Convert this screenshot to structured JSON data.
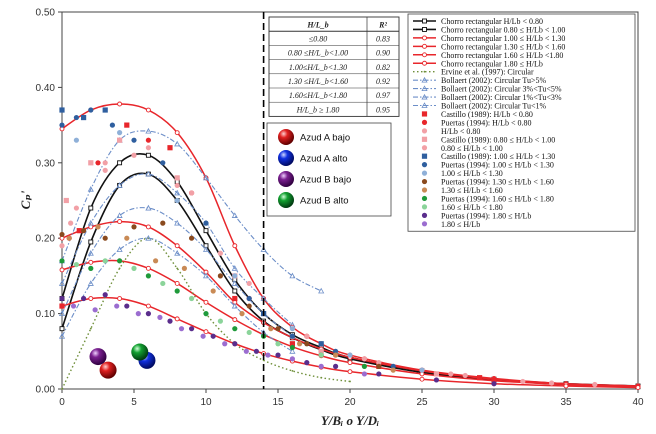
{
  "chart_data": {
    "type": "scatter",
    "xlabel": "Y/Bᵢ  o Y/Dᵢ",
    "ylabel": "Cₚ'",
    "xlim": [
      0,
      40
    ],
    "ylim": [
      0,
      0.5
    ],
    "xticks": [
      "0",
      "5",
      "10",
      "15",
      "20",
      "25",
      "30",
      "35",
      "40"
    ],
    "yticks": [
      "0.00",
      "0.10",
      "0.20",
      "0.30",
      "0.40",
      "0.50"
    ],
    "vline_x": 14,
    "table": {
      "headers": [
        "H/L_b",
        "R²"
      ],
      "rows": [
        [
          "≤0.80",
          "0.83"
        ],
        [
          "0.80 ≤H/L_b<1.00",
          "0.90"
        ],
        [
          "1.00≤H/L_b<1.30",
          "0.82"
        ],
        [
          "1.30 ≤H/L_b<1.60",
          "0.92"
        ],
        [
          "1.60≤H/L_b<1.80",
          "0.97"
        ],
        [
          "H/L_b ≥ 1.80",
          "0.95"
        ]
      ]
    },
    "azud_legend": [
      {
        "label": "Azud A bajo",
        "color": "#cc1111"
      },
      {
        "label": "Azud A alto",
        "color": "#1122cc"
      },
      {
        "label": "Azud B bajo",
        "color": "#6a1a7a"
      },
      {
        "label": "Azud B alto",
        "color": "#118a22"
      }
    ],
    "azud_markers": [
      {
        "x": 3.2,
        "y": 0.025,
        "color": "#cc1111"
      },
      {
        "x": 5.9,
        "y": 0.038,
        "color": "#1122cc"
      },
      {
        "x": 2.5,
        "y": 0.043,
        "color": "#6a1a7a"
      },
      {
        "x": 5.4,
        "y": 0.049,
        "color": "#118a22"
      }
    ],
    "series": [
      {
        "name": "Chorro rectangular H/Lb < 0.80",
        "style": "black-line",
        "color": "#000000",
        "x": [
          0,
          2,
          4,
          6,
          8,
          10,
          12,
          14,
          16,
          18,
          20,
          25,
          30,
          35,
          40
        ],
        "y": [
          0.08,
          0.195,
          0.27,
          0.285,
          0.25,
          0.19,
          0.13,
          0.09,
          0.068,
          0.052,
          0.04,
          0.022,
          0.012,
          0.006,
          0.003
        ]
      },
      {
        "name": "Chorro rectangular 0.80 ≤ H/Lb < 1.00",
        "style": "black-line",
        "color": "#000000",
        "x": [
          0,
          2,
          4,
          6,
          8,
          10,
          12,
          14,
          16,
          18,
          20,
          25,
          30,
          35,
          40
        ],
        "y": [
          0.12,
          0.24,
          0.3,
          0.31,
          0.275,
          0.21,
          0.145,
          0.1,
          0.072,
          0.055,
          0.042,
          0.024,
          0.013,
          0.007,
          0.004
        ]
      },
      {
        "name": "Chorro rectangular 1.00 ≤ H/Lb < 1.30",
        "style": "red-line",
        "color": "#e8262b",
        "x": [
          0,
          2,
          4,
          6,
          8,
          10,
          12,
          14,
          16,
          18,
          20,
          25,
          30,
          35,
          40
        ],
        "y": [
          0.345,
          0.37,
          0.378,
          0.37,
          0.34,
          0.28,
          0.19,
          0.12,
          0.082,
          0.06,
          0.045,
          0.025,
          0.014,
          0.007,
          0.004
        ]
      },
      {
        "name": "Chorro rectangular 1.30 ≤ H/Lb < 1.60",
        "style": "red-line",
        "color": "#e8262b",
        "x": [
          0,
          2,
          4,
          6,
          8,
          10,
          12,
          14,
          16,
          18,
          20,
          25,
          30,
          35,
          40
        ],
        "y": [
          0.2,
          0.215,
          0.222,
          0.215,
          0.19,
          0.155,
          0.115,
          0.088,
          0.068,
          0.053,
          0.042,
          0.024,
          0.013,
          0.007,
          0.004
        ]
      },
      {
        "name": "Chorro rectangular 1.60 ≤ H/Lb <1.80",
        "style": "red-line",
        "color": "#e8262b",
        "x": [
          0,
          2,
          4,
          6,
          8,
          10,
          12,
          14,
          16,
          18,
          20,
          25,
          30,
          35,
          40
        ],
        "y": [
          0.158,
          0.168,
          0.17,
          0.16,
          0.14,
          0.115,
          0.092,
          0.072,
          0.056,
          0.044,
          0.035,
          0.02,
          0.011,
          0.006,
          0.003
        ]
      },
      {
        "name": "Chorro rectangular 1.80 ≤ H/Lb",
        "style": "red-line",
        "color": "#e8262b",
        "x": [
          0,
          2,
          4,
          6,
          8,
          10,
          12,
          14,
          16,
          18,
          20,
          25,
          30,
          35,
          40
        ],
        "y": [
          0.11,
          0.12,
          0.12,
          0.11,
          0.093,
          0.076,
          0.06,
          0.047,
          0.037,
          0.029,
          0.023,
          0.013,
          0.007,
          0.004,
          0.002
        ]
      },
      {
        "name": "Ervine et al. (1997): Circular",
        "style": "green-dotted",
        "color": "#6f8f3a",
        "x": [
          0,
          2,
          4,
          6,
          8,
          10,
          12,
          14,
          16,
          18,
          20
        ],
        "y": [
          0.0,
          0.08,
          0.16,
          0.2,
          0.16,
          0.1,
          0.06,
          0.038,
          0.024,
          0.015,
          0.01
        ]
      },
      {
        "name": "Bollaert (2002): Circular Tu>5%",
        "style": "blue-dashdot",
        "color": "#6c8ec8",
        "x": [
          0,
          2,
          4,
          6,
          8,
          10,
          12,
          14,
          16,
          18
        ],
        "y": [
          0.17,
          0.265,
          0.33,
          0.342,
          0.325,
          0.28,
          0.23,
          0.185,
          0.15,
          0.13
        ]
      },
      {
        "name": "Bollaert (2002): Circular 3%<Tu<5%",
        "style": "blue-dashdot",
        "color": "#6c8ec8",
        "x": [
          0,
          2,
          4,
          6,
          8,
          10,
          12,
          14,
          16
        ],
        "y": [
          0.14,
          0.22,
          0.27,
          0.285,
          0.26,
          0.22,
          0.16,
          0.12,
          0.085
        ]
      },
      {
        "name": "Bollaert (2002): Circular 1%<Tu<3%",
        "style": "blue-dashdot",
        "color": "#6c8ec8",
        "x": [
          0,
          2,
          4,
          6,
          8,
          10,
          12,
          14,
          16
        ],
        "y": [
          0.1,
          0.18,
          0.23,
          0.24,
          0.22,
          0.185,
          0.14,
          0.1,
          0.07
        ]
      },
      {
        "name": "Bollaert (2002): Circular Tu<1%",
        "style": "blue-dashdot",
        "color": "#6c8ec8",
        "x": [
          0,
          2,
          4,
          6,
          8,
          10,
          12,
          14,
          16
        ],
        "y": [
          0.07,
          0.14,
          0.185,
          0.2,
          0.18,
          0.15,
          0.11,
          0.075,
          0.05
        ]
      },
      {
        "name": "Castillo (1989): H/Lb < 0.80",
        "style": "red-square",
        "color": "#e8262b",
        "x": [
          0,
          1.2,
          4.5,
          7.5,
          12,
          16,
          22,
          29
        ],
        "y": [
          0.11,
          0.21,
          0.35,
          0.32,
          0.12,
          0.06,
          0.03,
          0.015
        ]
      },
      {
        "name": "Puertas (1994): H/Lb < 0.80",
        "style": "red-dot",
        "color": "#e8262b",
        "x": [
          0.5,
          2.5,
          6,
          9,
          13,
          17,
          21,
          25,
          30
        ],
        "y": [
          0.2,
          0.3,
          0.33,
          0.26,
          0.12,
          0.07,
          0.04,
          0.025,
          0.012
        ]
      },
      {
        "name": "H/Lb < 0.80",
        "style": "pink-dot",
        "color": "#f2a0a6",
        "x": [
          0,
          1,
          3,
          5,
          8,
          11,
          14,
          18,
          22,
          27,
          32,
          37
        ],
        "y": [
          0.19,
          0.24,
          0.29,
          0.31,
          0.27,
          0.18,
          0.1,
          0.06,
          0.035,
          0.02,
          0.01,
          0.006
        ]
      },
      {
        "name": "Castillo (1989): 0.80 ≤ H/Lb < 1.00",
        "style": "pink-square",
        "color": "#f2a0a6",
        "x": [
          0.3,
          2,
          4,
          8,
          12,
          18,
          26
        ],
        "y": [
          0.25,
          0.3,
          0.33,
          0.28,
          0.15,
          0.05,
          0.02
        ]
      },
      {
        "name": "0.80 ≤ H/Lb < 1.00",
        "style": "pink-dot",
        "color": "#f2a0a6",
        "x": [
          0.6,
          3,
          6,
          9,
          13,
          17,
          21,
          28,
          34
        ],
        "y": [
          0.22,
          0.3,
          0.32,
          0.26,
          0.14,
          0.07,
          0.04,
          0.018,
          0.008
        ]
      },
      {
        "name": "Castillo (1989): 1.00 ≤ H/Lb < 1.30",
        "style": "blue-square",
        "color": "#2f5f9f",
        "x": [
          0,
          1.5,
          3,
          14,
          18
        ],
        "y": [
          0.37,
          0.36,
          0.37,
          0.1,
          0.06
        ]
      },
      {
        "name": "Puertas (1994): 1.00 ≤ H/Lb < 1.30",
        "style": "blue-dot",
        "color": "#2f5f9f",
        "x": [
          0,
          1,
          2,
          3.5,
          5,
          7,
          10,
          13,
          16,
          19,
          23
        ],
        "y": [
          0.35,
          0.36,
          0.37,
          0.35,
          0.33,
          0.3,
          0.22,
          0.12,
          0.07,
          0.05,
          0.03
        ]
      },
      {
        "name": "1.00 ≤ H/Lb < 1.30",
        "style": "lightblue-dot",
        "color": "#8fb0d8",
        "x": [
          1,
          4,
          8,
          12,
          16,
          20,
          25
        ],
        "y": [
          0.33,
          0.34,
          0.25,
          0.15,
          0.08,
          0.045,
          0.025
        ]
      },
      {
        "name": "Puertas (1994): 1.30 ≤ H/Lb < 1.60",
        "style": "brown-dot",
        "color": "#8a4a1e",
        "x": [
          0,
          1.5,
          3,
          5,
          7,
          9,
          11,
          13,
          15,
          17,
          19,
          22
        ],
        "y": [
          0.205,
          0.21,
          0.2,
          0.215,
          0.22,
          0.2,
          0.15,
          0.11,
          0.08,
          0.06,
          0.045,
          0.03
        ]
      },
      {
        "name": "1.30 ≤ H/Lb < 1.60",
        "style": "tan-dot",
        "color": "#c98a55",
        "x": [
          0.5,
          2.5,
          4.5,
          6.5,
          8.5,
          10.5,
          12.5,
          14.5,
          16.5,
          19,
          23
        ],
        "y": [
          0.2,
          0.215,
          0.2,
          0.17,
          0.16,
          0.13,
          0.1,
          0.08,
          0.06,
          0.045,
          0.025
        ]
      },
      {
        "name": "Puertas (1994): 1.60 ≤ H/Lb < 1.80",
        "style": "green-dot",
        "color": "#1f9a3a",
        "x": [
          0,
          2,
          4,
          6,
          8,
          10,
          12,
          14,
          16,
          18,
          21
        ],
        "y": [
          0.17,
          0.16,
          0.17,
          0.15,
          0.13,
          0.1,
          0.08,
          0.07,
          0.055,
          0.045,
          0.03
        ]
      },
      {
        "name": "1.60 ≤ H/Lb < 1.80",
        "style": "lightgreen-dot",
        "color": "#8bd49a",
        "x": [
          1,
          3,
          5,
          7,
          9,
          11,
          13,
          15,
          18
        ],
        "y": [
          0.165,
          0.17,
          0.16,
          0.14,
          0.12,
          0.09,
          0.075,
          0.06,
          0.045
        ]
      },
      {
        "name": "Puertas (1994): 1.80 ≤ H/Lb",
        "style": "purple-dot",
        "color": "#5a2d8c",
        "x": [
          0,
          1.5,
          3,
          4.5,
          6,
          7.5,
          9,
          10.5,
          12,
          13.5,
          15,
          17,
          19,
          22,
          26,
          30
        ],
        "y": [
          0.12,
          0.12,
          0.125,
          0.11,
          0.1,
          0.09,
          0.08,
          0.07,
          0.06,
          0.05,
          0.045,
          0.035,
          0.03,
          0.02,
          0.012,
          0.007
        ]
      },
      {
        "name": "1.80 ≤ H/Lb",
        "style": "violet-dot",
        "color": "#9b6dd0",
        "x": [
          0.8,
          2.3,
          3.8,
          5.3,
          6.8,
          8.3,
          9.8,
          11.3,
          12.8,
          14.3,
          16,
          18,
          21
        ],
        "y": [
          0.11,
          0.105,
          0.11,
          0.1,
          0.095,
          0.08,
          0.07,
          0.06,
          0.05,
          0.045,
          0.04,
          0.03,
          0.02
        ]
      }
    ]
  }
}
